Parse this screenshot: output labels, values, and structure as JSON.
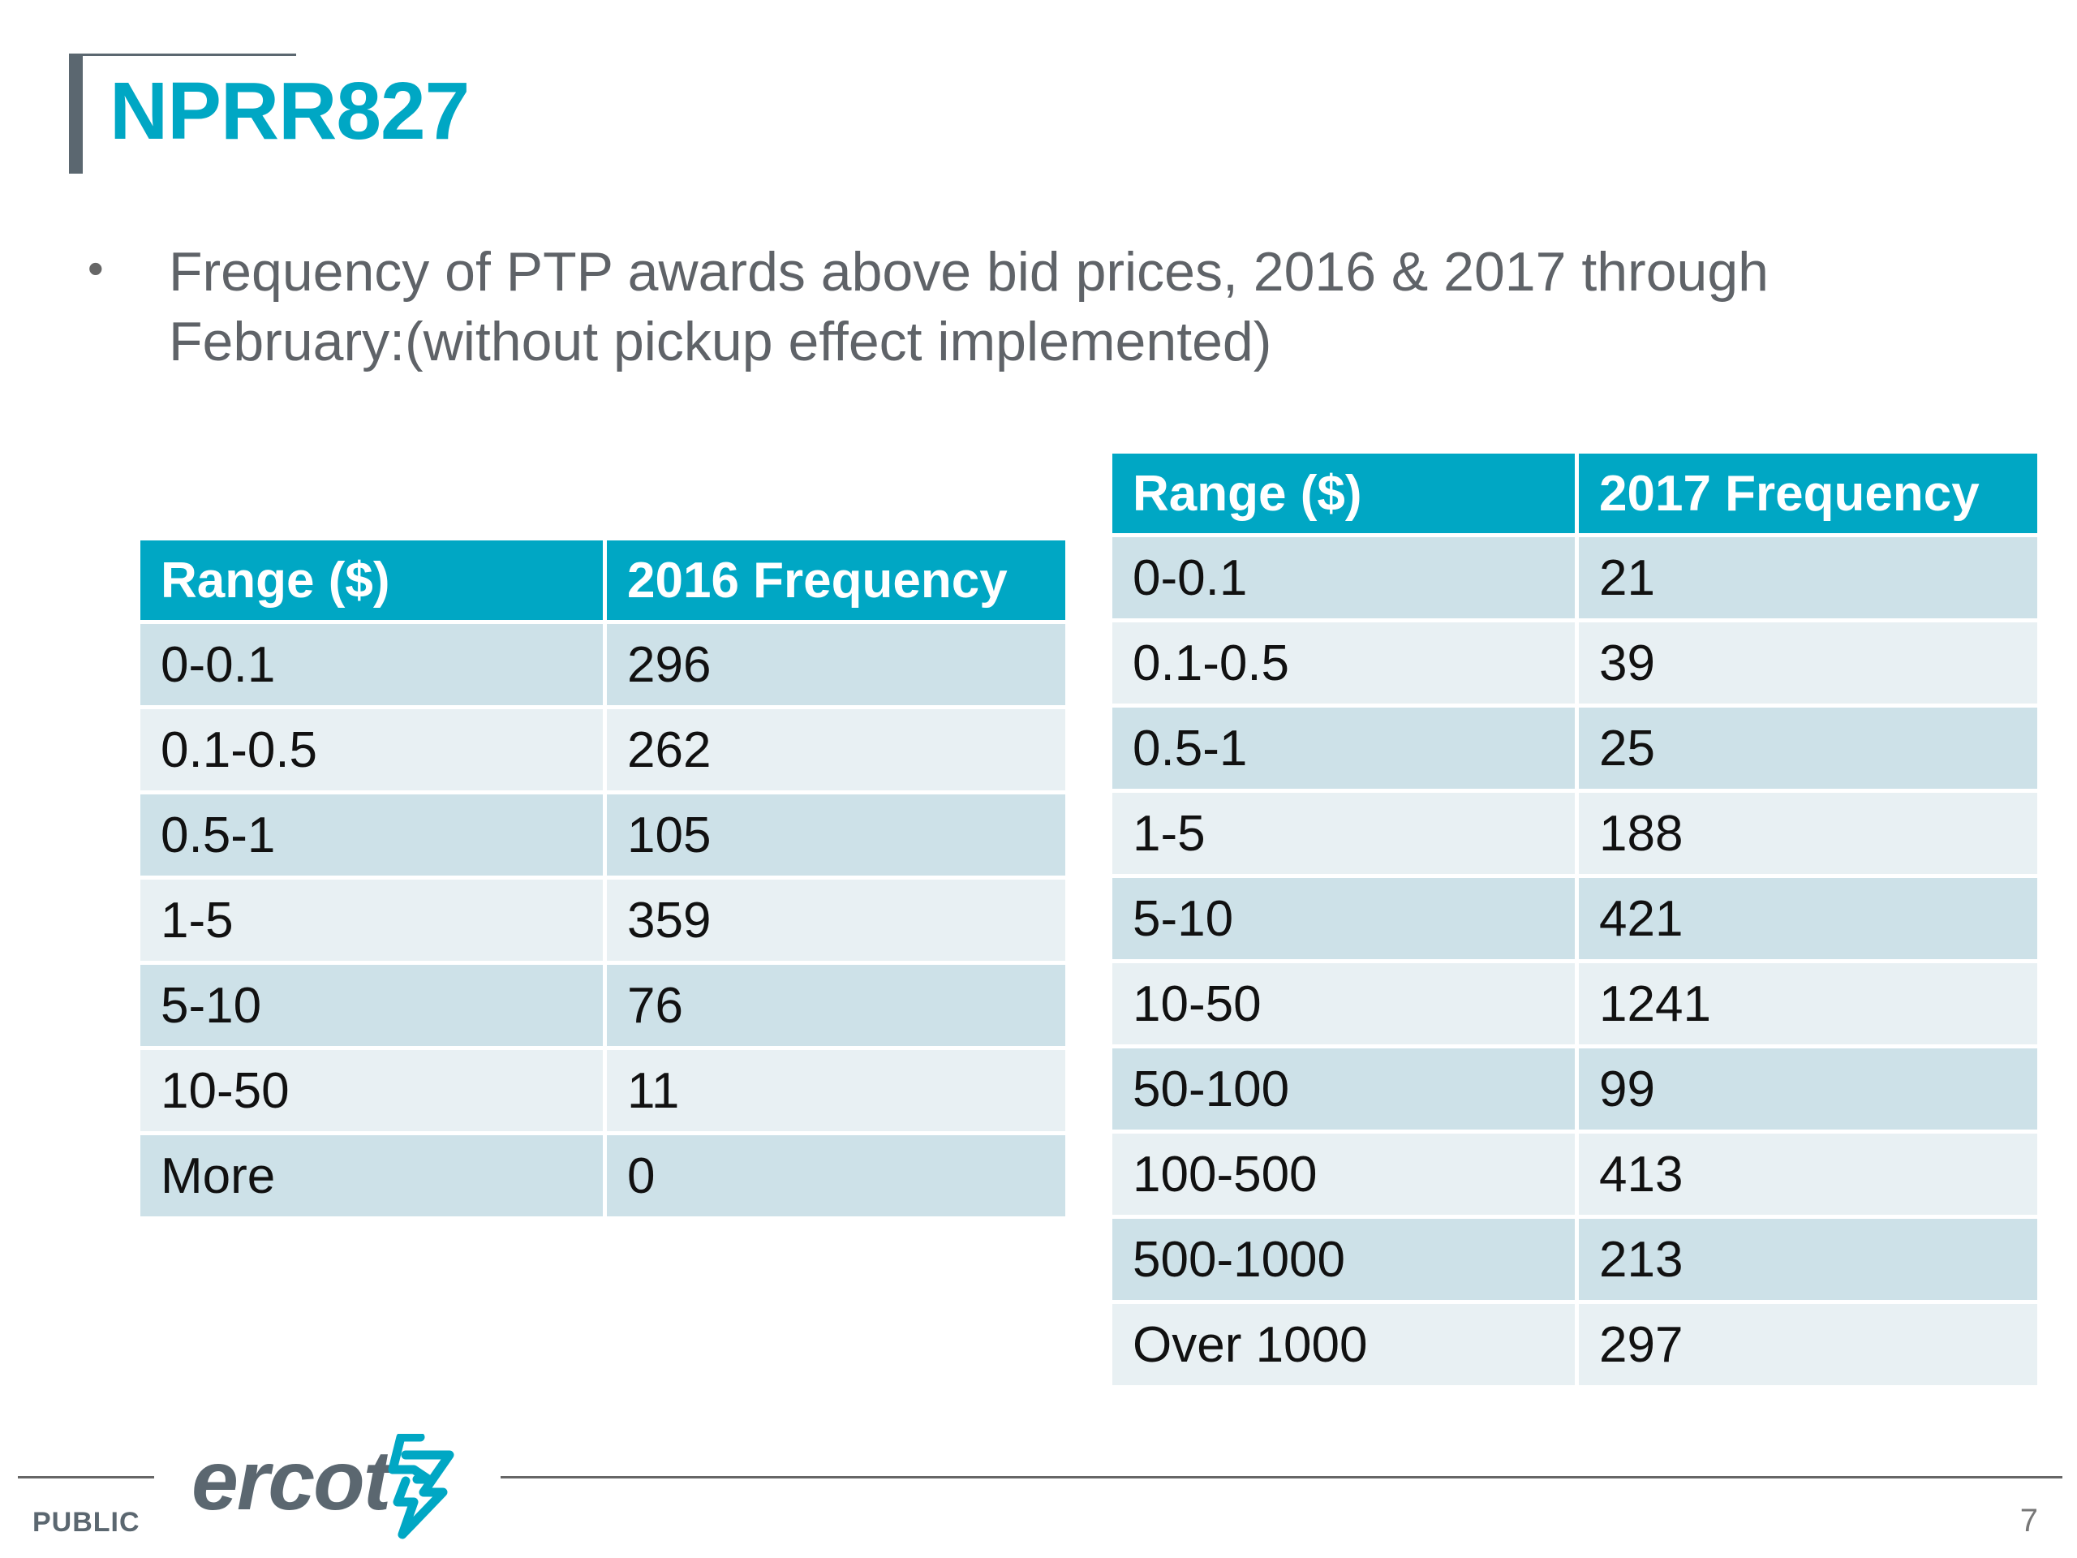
{
  "slide": {
    "title": "NPRR827",
    "bullet_line1": "Frequency of PTP awards above bid prices, 2016 & 2017 through",
    "bullet_line2": "February:(without pickup effect implemented)"
  },
  "table_2016": {
    "headers": [
      "Range ($)",
      "2016 Frequency"
    ],
    "rows": [
      [
        "0-0.1",
        "296"
      ],
      [
        "0.1-0.5",
        "262"
      ],
      [
        "0.5-1",
        "105"
      ],
      [
        "1-5",
        "359"
      ],
      [
        "5-10",
        "76"
      ],
      [
        "10-50",
        "11"
      ],
      [
        "More",
        "0"
      ]
    ]
  },
  "table_2017": {
    "headers": [
      "Range ($)",
      "2017 Frequency"
    ],
    "rows": [
      [
        "0-0.1",
        "21"
      ],
      [
        "0.1-0.5",
        "39"
      ],
      [
        "0.5-1",
        "25"
      ],
      [
        "1-5",
        "188"
      ],
      [
        "5-10",
        "421"
      ],
      [
        "10-50",
        "1241"
      ],
      [
        "50-100",
        "99"
      ],
      [
        "100-500",
        "413"
      ],
      [
        "500-1000",
        "213"
      ],
      [
        "Over 1000",
        "297"
      ]
    ]
  },
  "footer": {
    "classification": "PUBLIC",
    "logo_text": "ercot",
    "page_number": "7"
  },
  "colors": {
    "accent": "#00a7c4",
    "row_dark": "#cde1e8",
    "row_light": "#e8f0f3",
    "gray": "#5b6770"
  },
  "icons": {
    "logo_mark": "ercot-lightning-mark-icon"
  }
}
